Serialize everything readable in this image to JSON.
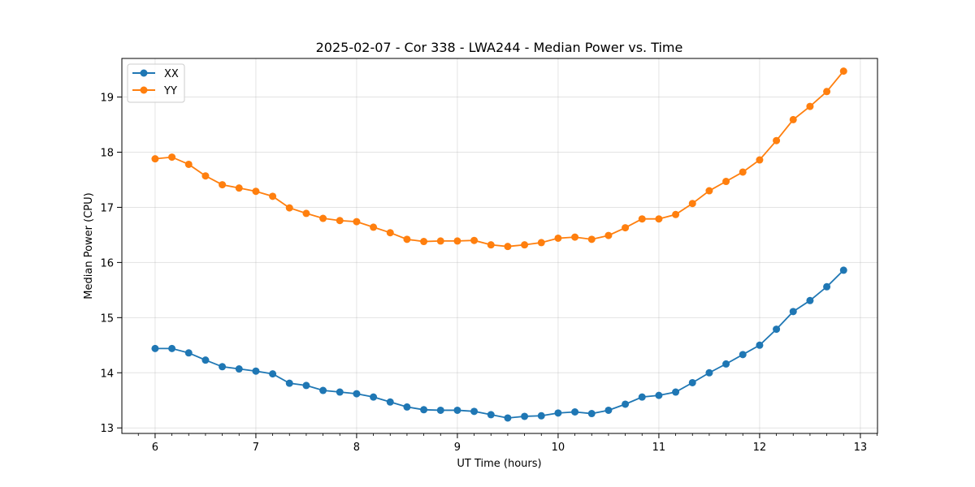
{
  "chart_data": {
    "type": "line",
    "title": "2025-02-07 - Cor 338 - LWA244 - Median Power vs. Time",
    "xlabel": "UT Time (hours)",
    "ylabel": "Median Power (CPU)",
    "xlim": [
      5.67,
      13.17
    ],
    "ylim": [
      12.9,
      19.7
    ],
    "xticks": [
      6,
      7,
      8,
      9,
      10,
      11,
      12,
      13
    ],
    "yticks": [
      13,
      14,
      15,
      16,
      17,
      18,
      19
    ],
    "grid": true,
    "legend_position": "top-left",
    "x": [
      6.0,
      6.1667,
      6.3333,
      6.5,
      6.6667,
      6.8333,
      7.0,
      7.1667,
      7.3333,
      7.5,
      7.6667,
      7.8333,
      8.0,
      8.1667,
      8.3333,
      8.5,
      8.6667,
      8.8333,
      9.0,
      9.1667,
      9.3333,
      9.5,
      9.6667,
      9.8333,
      10.0,
      10.1667,
      10.3333,
      10.5,
      10.6667,
      10.8333,
      11.0,
      11.1667,
      11.3333,
      11.5,
      11.6667,
      11.8333,
      12.0,
      12.1667,
      12.3333,
      12.5,
      12.6667,
      12.8333
    ],
    "series": [
      {
        "name": "XX",
        "color": "#1f77b4",
        "values": [
          14.44,
          14.44,
          14.36,
          14.23,
          14.11,
          14.07,
          14.03,
          13.98,
          13.81,
          13.77,
          13.68,
          13.65,
          13.62,
          13.56,
          13.47,
          13.38,
          13.33,
          13.32,
          13.32,
          13.3,
          13.24,
          13.18,
          13.21,
          13.22,
          13.27,
          13.29,
          13.26,
          13.32,
          13.43,
          13.56,
          13.59,
          13.65,
          13.82,
          14.0,
          14.16,
          14.33,
          14.5,
          14.79,
          15.11,
          15.31,
          15.56,
          15.86
        ]
      },
      {
        "name": "YY",
        "color": "#ff7f0e",
        "values": [
          17.88,
          17.91,
          17.78,
          17.57,
          17.41,
          17.35,
          17.29,
          17.2,
          16.99,
          16.89,
          16.8,
          16.76,
          16.74,
          16.64,
          16.54,
          16.42,
          16.38,
          16.39,
          16.39,
          16.4,
          16.32,
          16.29,
          16.32,
          16.36,
          16.44,
          16.46,
          16.42,
          16.49,
          16.63,
          16.79,
          16.79,
          16.87,
          17.07,
          17.3,
          17.47,
          17.64,
          17.86,
          18.21,
          18.59,
          18.83,
          19.1,
          19.47
        ]
      }
    ]
  }
}
